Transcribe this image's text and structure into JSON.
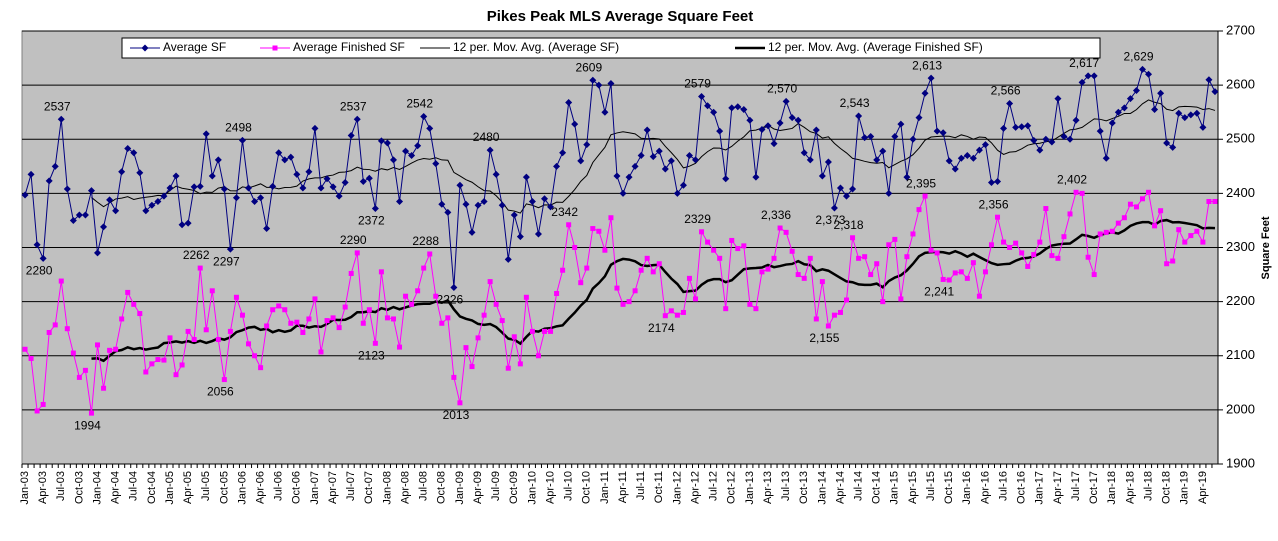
{
  "chart_data": {
    "type": "line",
    "title": "Pikes Peak MLS Average Square Feet",
    "y_axis_label": "Square Feet",
    "ylim": [
      1900,
      2700
    ],
    "yticks": [
      1900,
      2000,
      2100,
      2200,
      2300,
      2400,
      2500,
      2600,
      2700
    ],
    "grid": true,
    "legend": "top",
    "categories": [
      "Jan-03",
      null,
      null,
      "Apr-03",
      null,
      null,
      "Jul-03",
      null,
      null,
      "Oct-03",
      null,
      null,
      "Jan-04",
      null,
      null,
      "Apr-04",
      null,
      null,
      "Jul-04",
      null,
      null,
      "Oct-04",
      null,
      null,
      "Jan-05",
      null,
      null,
      "Apr-05",
      null,
      null,
      "Jul-05",
      null,
      null,
      "Oct-05",
      null,
      null,
      "Jan-06",
      null,
      null,
      "Apr-06",
      null,
      null,
      "Jul-06",
      null,
      null,
      "Oct-06",
      null,
      null,
      "Jan-07",
      null,
      null,
      "Apr-07",
      null,
      null,
      "Jul-07",
      null,
      null,
      "Oct-07",
      null,
      null,
      "Jan-08",
      null,
      null,
      "Apr-08",
      null,
      null,
      "Jul-08",
      null,
      null,
      "Oct-08",
      null,
      null,
      "Jan-09",
      null,
      null,
      "Apr-09",
      null,
      null,
      "Jul-09",
      null,
      null,
      "Oct-09",
      null,
      null,
      "Jan-10",
      null,
      null,
      "Apr-10",
      null,
      null,
      "Jul-10",
      null,
      null,
      "Oct-10",
      null,
      null,
      "Jan-11",
      null,
      null,
      "Apr-11",
      null,
      null,
      "Jul-11",
      null,
      null,
      "Oct-11",
      null,
      null,
      "Jan-12",
      null,
      null,
      "Apr-12",
      null,
      null,
      "Jul-12",
      null,
      null,
      "Oct-12",
      null,
      null,
      "Jan-13",
      null,
      null,
      "Apr-13",
      null,
      null,
      "Jul-13",
      null,
      null,
      "Oct-13",
      null,
      null,
      "Jan-14",
      null,
      null,
      "Apr-14",
      null,
      null,
      "Jul-14",
      null,
      null,
      "Oct-14",
      null,
      null,
      "Jan-15",
      null,
      null,
      "Apr-15",
      null,
      null,
      "Jul-15",
      null,
      null,
      "Oct-15",
      null,
      null,
      "Jan-16",
      null,
      null,
      "Apr-16",
      null,
      null,
      "Jul-16",
      null,
      null,
      "Oct-16",
      null,
      null,
      "Jan-17",
      null,
      null,
      "Apr-17",
      null,
      null,
      "Jul-17",
      null,
      null,
      "Oct-17",
      null,
      null,
      "Jan-18",
      null,
      null,
      "Apr-18",
      null,
      null,
      "Jul-18",
      null,
      null,
      "Oct-18",
      null,
      null,
      "Jan-19",
      null,
      null,
      "Apr-19",
      null,
      null
    ],
    "series": [
      {
        "name": "Average SF",
        "color": "#000080",
        "marker": "diamond",
        "values": [
          2397,
          2435,
          2305,
          2280,
          2423,
          2450,
          2537,
          2408,
          2350,
          2360,
          2360,
          2405,
          2290,
          2338,
          2388,
          2368,
          2440,
          2483,
          2475,
          2438,
          2368,
          2378,
          2385,
          2395,
          2410,
          2432,
          2342,
          2345,
          2412,
          2413,
          2510,
          2432,
          2462,
          2408,
          2297,
          2392,
          2498,
          2410,
          2385,
          2392,
          2335,
          2413,
          2475,
          2462,
          2467,
          2435,
          2410,
          2440,
          2520,
          2410,
          2427,
          2412,
          2395,
          2420,
          2507,
          2537,
          2422,
          2428,
          2372,
          2497,
          2493,
          2462,
          2385,
          2478,
          2470,
          2488,
          2542,
          2520,
          2455,
          2380,
          2365,
          2226,
          2415,
          2380,
          2328,
          2378,
          2385,
          2480,
          2435,
          2378,
          2278,
          2360,
          2320,
          2430,
          2385,
          2325,
          2390,
          2375,
          2450,
          2475,
          2568,
          2528,
          2460,
          2490,
          2609,
          2600,
          2550,
          2603,
          2432,
          2400,
          2430,
          2450,
          2470,
          2517,
          2468,
          2478,
          2445,
          2460,
          2400,
          2415,
          2470,
          2462,
          2579,
          2562,
          2550,
          2515,
          2427,
          2558,
          2560,
          2555,
          2535,
          2430,
          2518,
          2525,
          2492,
          2530,
          2570,
          2540,
          2535,
          2475,
          2462,
          2517,
          2432,
          2458,
          2373,
          2410,
          2395,
          2408,
          2543,
          2503,
          2505,
          2462,
          2478,
          2400,
          2505,
          2528,
          2430,
          2500,
          2540,
          2585,
          2613,
          2515,
          2512,
          2460,
          2445,
          2465,
          2470,
          2465,
          2480,
          2490,
          2420,
          2422,
          2520,
          2566,
          2522,
          2523,
          2525,
          2498,
          2480,
          2500,
          2495,
          2575,
          2505,
          2500,
          2535,
          2605,
          2617,
          2617,
          2515,
          2465,
          2530,
          2550,
          2558,
          2575,
          2590,
          2629,
          2620,
          2555,
          2585,
          2493,
          2485,
          2548,
          2540,
          2545,
          2548,
          2522,
          2610,
          2588
        ],
        "value_labels": [
          null,
          null,
          null,
          "2280",
          null,
          null,
          "2537",
          null,
          null,
          null,
          null,
          null,
          null,
          null,
          null,
          null,
          null,
          null,
          null,
          null,
          null,
          null,
          null,
          null,
          null,
          null,
          null,
          null,
          null,
          null,
          null,
          null,
          null,
          null,
          "2297",
          null,
          "2498",
          null,
          null,
          null,
          null,
          null,
          null,
          null,
          null,
          null,
          null,
          null,
          null,
          null,
          null,
          null,
          null,
          null,
          null,
          "2537",
          null,
          null,
          "2372",
          null,
          null,
          null,
          null,
          null,
          null,
          null,
          "2542",
          null,
          null,
          null,
          null,
          "2226",
          null,
          null,
          null,
          null,
          null,
          "2480",
          null,
          null,
          null,
          null,
          null,
          null,
          null,
          null,
          null,
          null,
          null,
          null,
          null,
          null,
          null,
          null,
          "2609",
          null,
          null,
          null,
          null,
          null,
          null,
          null,
          null,
          null,
          null,
          null,
          null,
          null,
          null,
          null,
          null,
          null,
          "2579",
          null,
          null,
          null,
          null,
          null,
          null,
          null,
          null,
          null,
          null,
          null,
          null,
          null,
          "2,570",
          null,
          null,
          null,
          null,
          null,
          null,
          null,
          "2,373",
          null,
          null,
          null,
          "2,543",
          null,
          null,
          null,
          null,
          null,
          null,
          null,
          null,
          null,
          null,
          null,
          "2,613",
          null,
          null,
          null,
          null,
          null,
          null,
          null,
          null,
          null,
          null,
          null,
          null,
          "2,566",
          null,
          null,
          null,
          null,
          null,
          null,
          null,
          null,
          null,
          null,
          null,
          null,
          "2,617",
          null,
          null,
          null,
          null,
          null,
          null,
          null,
          null,
          "2,629",
          null,
          null,
          null,
          null,
          null,
          null,
          null,
          null,
          null,
          null,
          null,
          null
        ],
        "trendline": {
          "name": "12 per. Mov. Avg. (Average SF)",
          "period": 12,
          "width": 1
        }
      },
      {
        "name": "Average Finished SF",
        "color": "#ff00ff",
        "marker": "square",
        "values": [
          2112,
          2095,
          1998,
          2010,
          2143,
          2157,
          2238,
          2150,
          2105,
          2060,
          2073,
          1994,
          2120,
          2040,
          2110,
          2112,
          2168,
          2217,
          2195,
          2178,
          2070,
          2085,
          2093,
          2092,
          2133,
          2065,
          2083,
          2145,
          2130,
          2262,
          2148,
          2220,
          2130,
          2056,
          2145,
          2208,
          2175,
          2122,
          2100,
          2078,
          2155,
          2185,
          2192,
          2185,
          2160,
          2162,
          2143,
          2168,
          2205,
          2107,
          2165,
          2170,
          2152,
          2190,
          2252,
          2290,
          2160,
          2185,
          2123,
          2255,
          2170,
          2168,
          2116,
          2210,
          2195,
          2220,
          2262,
          2288,
          2210,
          2160,
          2170,
          2060,
          2013,
          2115,
          2080,
          2133,
          2175,
          2237,
          2195,
          2165,
          2077,
          2135,
          2085,
          2208,
          2145,
          2100,
          2145,
          2145,
          2215,
          2258,
          2342,
          2300,
          2235,
          2262,
          2335,
          2330,
          2295,
          2355,
          2225,
          2195,
          2200,
          2220,
          2258,
          2280,
          2255,
          2270,
          2174,
          2183,
          2175,
          2180,
          2243,
          2205,
          2329,
          2310,
          2295,
          2280,
          2187,
          2313,
          2298,
          2303,
          2195,
          2187,
          2255,
          2260,
          2280,
          2336,
          2328,
          2293,
          2250,
          2243,
          2280,
          2168,
          2237,
          2155,
          2175,
          2180,
          2203,
          2318,
          2280,
          2283,
          2250,
          2270,
          2200,
          2305,
          2315,
          2205,
          2283,
          2325,
          2370,
          2395,
          2295,
          2290,
          2241,
          2240,
          2253,
          2255,
          2243,
          2272,
          2210,
          2255,
          2305,
          2356,
          2310,
          2300,
          2308,
          2290,
          2265,
          2287,
          2310,
          2372,
          2285,
          2280,
          2320,
          2362,
          2402,
          2400,
          2282,
          2250,
          2325,
          2328,
          2330,
          2345,
          2355,
          2380,
          2375,
          2390,
          2402,
          2340,
          2368,
          2270,
          2275,
          2333,
          2310,
          2322,
          2330,
          2310,
          2385,
          2385
        ],
        "value_labels": [
          null,
          null,
          null,
          null,
          null,
          null,
          null,
          null,
          null,
          null,
          null,
          "1994",
          null,
          null,
          null,
          null,
          null,
          null,
          null,
          null,
          null,
          null,
          null,
          null,
          null,
          null,
          null,
          null,
          null,
          "2262",
          null,
          null,
          null,
          "2056",
          null,
          null,
          null,
          null,
          null,
          null,
          null,
          null,
          null,
          null,
          null,
          null,
          null,
          null,
          null,
          null,
          null,
          null,
          null,
          null,
          null,
          "2290",
          null,
          null,
          "2123",
          null,
          null,
          null,
          null,
          null,
          null,
          null,
          null,
          "2288",
          null,
          null,
          null,
          null,
          "2013",
          null,
          null,
          null,
          null,
          null,
          null,
          null,
          null,
          null,
          null,
          null,
          null,
          null,
          null,
          null,
          null,
          null,
          "2342",
          null,
          null,
          null,
          null,
          null,
          null,
          null,
          null,
          null,
          null,
          null,
          null,
          null,
          null,
          null,
          "2174",
          null,
          null,
          null,
          null,
          null,
          "2329",
          null,
          null,
          null,
          null,
          null,
          null,
          null,
          null,
          null,
          null,
          null,
          null,
          "2,336",
          null,
          null,
          null,
          null,
          null,
          null,
          null,
          "2,155",
          null,
          null,
          null,
          "2,318",
          null,
          null,
          null,
          null,
          null,
          null,
          null,
          null,
          null,
          null,
          null,
          "2,395",
          null,
          null,
          "2,241",
          null,
          null,
          null,
          null,
          null,
          null,
          null,
          null,
          "2,356",
          null,
          null,
          null,
          null,
          null,
          null,
          null,
          null,
          null,
          null,
          null,
          null,
          "2,402",
          null,
          null,
          null,
          null,
          null,
          null,
          null,
          null,
          null,
          null,
          null,
          null,
          null,
          null,
          null,
          null,
          null,
          null,
          null,
          null,
          null,
          null,
          null
        ],
        "trendline": {
          "name": "12 per. Mov. Avg. (Average Finished SF)",
          "period": 12,
          "width": 2.5
        }
      }
    ]
  }
}
